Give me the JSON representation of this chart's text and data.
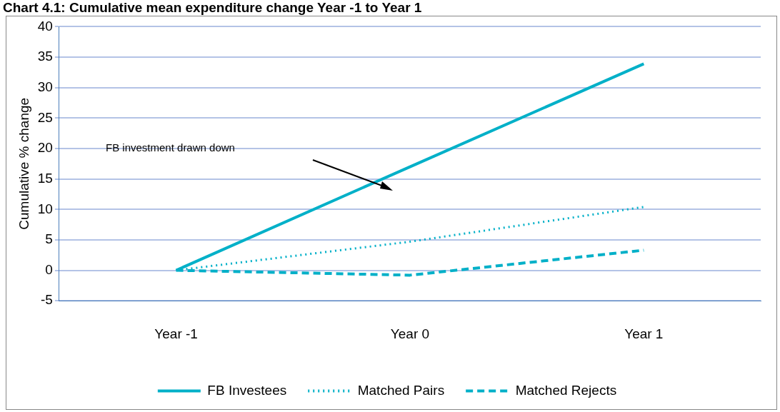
{
  "chart_data": {
    "type": "line",
    "title": "Chart 4.1: Cumulative mean expenditure change Year -1 to Year 1",
    "ylabel": "Cumulative % change",
    "categories": [
      "Year -1",
      "Year 0",
      "Year 1"
    ],
    "series": [
      {
        "name": "FB Investees",
        "color": "#00b0c8",
        "line_style": "solid",
        "values": [
          0,
          17.0,
          33.9
        ]
      },
      {
        "name": "Matched Pairs",
        "color": "#00b0c8",
        "line_style": "dotted",
        "values": [
          0,
          4.7,
          10.4
        ]
      },
      {
        "name": "Matched Rejects",
        "color": "#00b0c8",
        "line_style": "dashed",
        "values": [
          0,
          -0.8,
          3.3
        ]
      }
    ],
    "ylim": [
      -5,
      40
    ],
    "yticks": [
      -5,
      0,
      5,
      10,
      15,
      20,
      25,
      30,
      35,
      40
    ],
    "grid": "y",
    "legend": "bottom",
    "marker": "none",
    "annotations": [
      "FB investment drawn down"
    ]
  }
}
